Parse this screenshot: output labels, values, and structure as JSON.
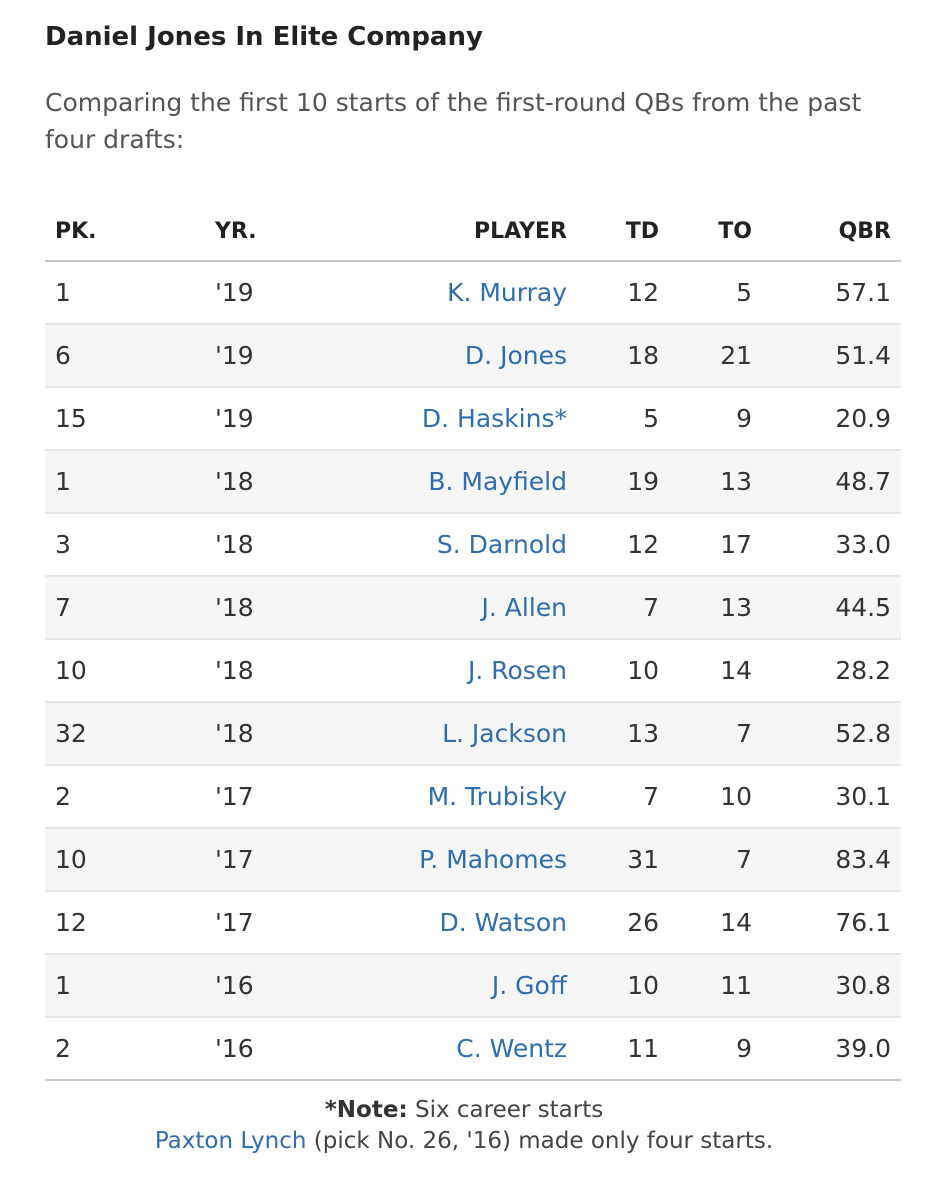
{
  "title": "Daniel Jones In Elite Company",
  "subtitle": "Comparing the first 10 starts of the first-round QBs from the past four drafts:",
  "colors": {
    "link": "#2f6db0",
    "stripe": "#f6f6f6",
    "text": "#333333"
  },
  "chart_data": {
    "type": "table",
    "columns": [
      "PK.",
      "YR.",
      "PLAYER",
      "TD",
      "TO",
      "QBR"
    ],
    "rows": [
      {
        "pk": "1",
        "yr": "'19",
        "player": "K. Murray",
        "td": "12",
        "to": "5",
        "qbr": "57.1"
      },
      {
        "pk": "6",
        "yr": "'19",
        "player": "D. Jones",
        "td": "18",
        "to": "21",
        "qbr": "51.4"
      },
      {
        "pk": "15",
        "yr": "'19",
        "player": "D. Haskins*",
        "td": "5",
        "to": "9",
        "qbr": "20.9"
      },
      {
        "pk": "1",
        "yr": "'18",
        "player": "B. Mayfield",
        "td": "19",
        "to": "13",
        "qbr": "48.7"
      },
      {
        "pk": "3",
        "yr": "'18",
        "player": "S. Darnold",
        "td": "12",
        "to": "17",
        "qbr": "33.0"
      },
      {
        "pk": "7",
        "yr": "'18",
        "player": "J. Allen",
        "td": "7",
        "to": "13",
        "qbr": "44.5"
      },
      {
        "pk": "10",
        "yr": "'18",
        "player": "J. Rosen",
        "td": "10",
        "to": "14",
        "qbr": "28.2"
      },
      {
        "pk": "32",
        "yr": "'18",
        "player": "L. Jackson",
        "td": "13",
        "to": "7",
        "qbr": "52.8"
      },
      {
        "pk": "2",
        "yr": "'17",
        "player": "M. Trubisky",
        "td": "7",
        "to": "10",
        "qbr": "30.1"
      },
      {
        "pk": "10",
        "yr": "'17",
        "player": "P. Mahomes",
        "td": "31",
        "to": "7",
        "qbr": "83.4"
      },
      {
        "pk": "12",
        "yr": "'17",
        "player": "D. Watson",
        "td": "26",
        "to": "14",
        "qbr": "76.1"
      },
      {
        "pk": "1",
        "yr": "'16",
        "player": "J. Goff",
        "td": "10",
        "to": "11",
        "qbr": "30.8"
      },
      {
        "pk": "2",
        "yr": "'16",
        "player": "C. Wentz",
        "td": "11",
        "to": "9",
        "qbr": "39.0"
      }
    ]
  },
  "note": {
    "label": "*Note:",
    "text": " Six career starts",
    "link_text": "Paxton Lynch",
    "link_suffix": " (pick No. 26, '16) made only four starts."
  }
}
